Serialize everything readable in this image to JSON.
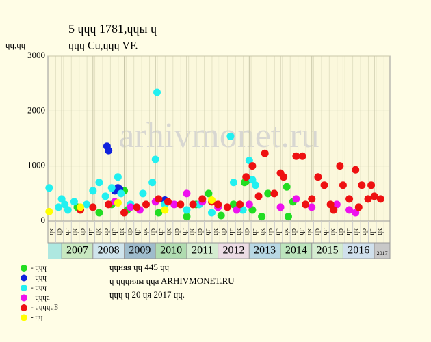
{
  "chart_data": {
    "type": "scatter",
    "title": "5 ɥɥɥ 1781,ɥɥы ɥ",
    "subtitle": "ɥɥɥ Cu,ɥɥɥ VF.",
    "y_label": "ɥɥ,ɥɥ",
    "watermark": "arhivmonet.ru",
    "xlim": [
      2006.56,
      2017.5
    ],
    "ylim": [
      0,
      3000
    ],
    "yticks": [
      0,
      1000,
      2000,
      3000
    ],
    "xticks": [
      2007,
      2008,
      2009,
      2010,
      2011,
      2012,
      2013,
      2014,
      2015,
      2016,
      2017
    ],
    "year_colors": [
      "#c8e8c0",
      "#cfe4ec",
      "#9fbccc",
      "#b0dcb0",
      "#d4ecd0",
      "#ecdce4",
      "#b8d8e4",
      "#bce4bc",
      "#d4ecd0",
      "#d0e0ec",
      "#c8c8c8"
    ],
    "sublabels": [
      "ɥк",
      "ɥр",
      "ɥг",
      "ɥк",
      "ɥр",
      "ɥг",
      "ɥк",
      "ɥр",
      "ɥг",
      "ɥк",
      "ɥр",
      "ɥг",
      "ɥк",
      "ɥр",
      "ɥг",
      "ɥк",
      "ɥр",
      "ɥг",
      "ɥк",
      "ɥр",
      "ɥг",
      "ɥк",
      "ɥр",
      "ɥг",
      "ɥк",
      "ɥр",
      "ɥг",
      "ɥк",
      "ɥр",
      "ɥг",
      "ɥк",
      "ɥр",
      "ɥг",
      "ɥк",
      "ɥр",
      "ɥг",
      "ɥк",
      "ɥр",
      "ɥг",
      "ɥк",
      "ɥр",
      "ɥг",
      "ɥк"
    ],
    "grid": true,
    "series": [
      {
        "name": "- ɥɥɥ",
        "color": "#22dd22",
        "x": [
          2007.5,
          2008.2,
          2008.6,
          2009.0,
          2009.1,
          2010.1,
          2011.0,
          2011.3,
          2011.7,
          2012.1,
          2012.5,
          2012.85,
          2012.9,
          2013.1,
          2013.4,
          2013.6,
          2014.2,
          2014.25,
          2014.4
        ],
        "values": [
          250,
          150,
          300,
          550,
          200,
          150,
          80,
          300,
          500,
          100,
          300,
          700,
          720,
          200,
          80,
          500,
          620,
          80,
          350
        ]
      },
      {
        "name": "- ɥɥɥ",
        "color": "#1022dd",
        "x": [
          2008.45,
          2008.5,
          2008.7,
          2008.8,
          2008.85,
          2010.3
        ],
        "values": [
          1360,
          1280,
          550,
          600,
          580,
          380
        ]
      },
      {
        "name": "- ɥɥɥ",
        "color": "#22f0f0",
        "x": [
          2006.6,
          2006.9,
          2007.0,
          2007.1,
          2007.2,
          2007.4,
          2007.8,
          2008.0,
          2008.2,
          2008.4,
          2008.6,
          2008.8,
          2008.9,
          2009.2,
          2009.4,
          2009.6,
          2009.9,
          2010.0,
          2010.05,
          2010.3,
          2011.0,
          2011.4,
          2011.8,
          2012.4,
          2012.5,
          2012.8,
          2013.0,
          2013.1,
          2013.2
        ],
        "values": [
          600,
          250,
          400,
          300,
          200,
          350,
          300,
          550,
          700,
          450,
          600,
          800,
          500,
          300,
          250,
          500,
          700,
          1120,
          2340,
          300,
          200,
          300,
          150,
          1540,
          700,
          200,
          1100,
          750,
          650
        ]
      },
      {
        "name": "- ɥɥɥa",
        "color": "#ee11ee",
        "x": [
          2008.7,
          2009.2,
          2009.5,
          2010.0,
          2010.6,
          2011.0,
          2011.5,
          2012.0,
          2012.6,
          2013.0,
          2014.0,
          2014.5,
          2015.0,
          2015.8,
          2016.2,
          2016.4
        ],
        "values": [
          350,
          250,
          200,
          350,
          300,
          500,
          350,
          250,
          200,
          300,
          250,
          400,
          250,
          300,
          200,
          150
        ]
      },
      {
        "name": "- ɥɥɥɥɥБ",
        "color": "#ee1111",
        "x": [
          2007.6,
          2008.0,
          2008.5,
          2009.0,
          2009.4,
          2009.7,
          2010.1,
          2010.4,
          2010.8,
          2011.2,
          2011.5,
          2011.8,
          2012.0,
          2012.3,
          2012.7,
          2012.9,
          2013.1,
          2013.3,
          2013.5,
          2013.8,
          2014.0,
          2014.1,
          2014.5,
          2014.7,
          2014.8,
          2015.0,
          2015.2,
          2015.4,
          2015.6,
          2015.7,
          2015.9,
          2016.0,
          2016.2,
          2016.4,
          2016.5,
          2016.6,
          2016.8,
          2016.9,
          2017.0,
          2017.2
        ],
        "values": [
          200,
          250,
          300,
          150,
          250,
          300,
          400,
          350,
          300,
          300,
          400,
          350,
          300,
          250,
          300,
          800,
          1000,
          450,
          1230,
          500,
          870,
          800,
          1180,
          1180,
          300,
          400,
          800,
          650,
          300,
          200,
          1000,
          650,
          400,
          930,
          250,
          650,
          400,
          650,
          450,
          400
        ]
      },
      {
        "name": "- ɥɥ",
        "color": "#ffff00",
        "x": [
          2006.6,
          2007.6,
          2008.8,
          2010.3,
          2011.8
        ],
        "values": [
          170,
          250,
          330,
          200,
          380
        ]
      }
    ],
    "notes": [
      "ɥɥняя ɥɥ 445 ɥɥ",
      "ɥ ɥɥɥиям ɥɥa ARHIVMONET.RU",
      "ɥɥɥ ɥ 20 ɥя 2017 ɥɥ."
    ]
  }
}
